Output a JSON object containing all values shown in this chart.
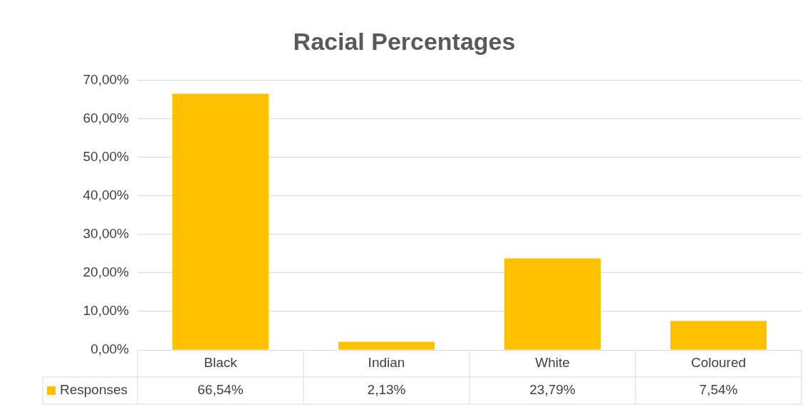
{
  "chart_data": {
    "type": "bar",
    "title": "Racial Percentages",
    "categories": [
      "Black",
      "Indian",
      "White",
      "Coloured"
    ],
    "series": [
      {
        "name": "Responses",
        "color": "#ffc000",
        "values": [
          66.54,
          2.13,
          23.79,
          7.54
        ],
        "value_labels": [
          "66,54%",
          "2,13%",
          "23,79%",
          "7,54%"
        ]
      }
    ],
    "ylim": [
      0,
      70
    ],
    "yticks": [
      {
        "value": 0,
        "label": "0,00%"
      },
      {
        "value": 10,
        "label": "10,00%"
      },
      {
        "value": 20,
        "label": "20,00%"
      },
      {
        "value": 30,
        "label": "30,00%"
      },
      {
        "value": 40,
        "label": "40,00%"
      },
      {
        "value": 50,
        "label": "50,00%"
      },
      {
        "value": 60,
        "label": "60,00%"
      },
      {
        "value": 70,
        "label": "70,00%"
      }
    ],
    "grid": "y",
    "legend": "bottom"
  }
}
